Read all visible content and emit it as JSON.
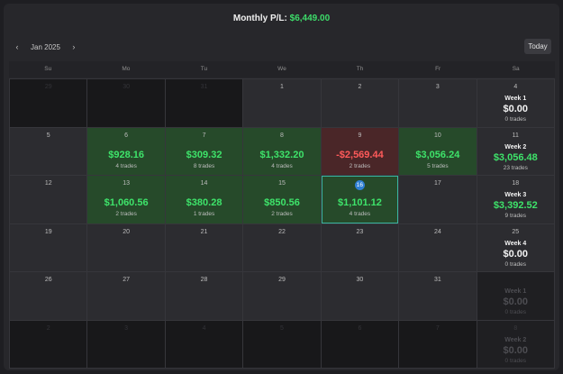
{
  "header": {
    "title_prefix": "Monthly P/L:",
    "title_value": "$6,449.00"
  },
  "nav": {
    "prev_icon": "‹",
    "month_label": "Jan 2025",
    "next_icon": "›",
    "today_label": "Today"
  },
  "weekdays": [
    "Su",
    "Mo",
    "Tu",
    "We",
    "Th",
    "Fr",
    "Sa"
  ],
  "colors": {
    "profit": "#3ee36a",
    "loss": "#ff5a5a",
    "today_marker": "#2f7fd4"
  },
  "weeks": [
    {
      "days": [
        {
          "day": "29",
          "outside": true
        },
        {
          "day": "30",
          "outside": true
        },
        {
          "day": "31",
          "outside": true
        },
        {
          "day": "1"
        },
        {
          "day": "2"
        },
        {
          "day": "3"
        },
        {
          "day": "4",
          "summary": {
            "label": "Week 1",
            "pnl": "$0.00",
            "trades": "0 trades"
          }
        }
      ]
    },
    {
      "days": [
        {
          "day": "5"
        },
        {
          "day": "6",
          "pnl": "$928.16",
          "trades": "4 trades",
          "status": "profit"
        },
        {
          "day": "7",
          "pnl": "$309.32",
          "trades": "8 trades",
          "status": "profit"
        },
        {
          "day": "8",
          "pnl": "$1,332.20",
          "trades": "4 trades",
          "status": "profit"
        },
        {
          "day": "9",
          "pnl": "-$2,569.44",
          "trades": "2 trades",
          "status": "loss"
        },
        {
          "day": "10",
          "pnl": "$3,056.24",
          "trades": "5 trades",
          "status": "profit"
        },
        {
          "day": "11",
          "summary": {
            "label": "Week 2",
            "pnl": "$3,056.48",
            "trades": "23 trades",
            "positive": true
          }
        }
      ]
    },
    {
      "days": [
        {
          "day": "12"
        },
        {
          "day": "13",
          "pnl": "$1,060.56",
          "trades": "2 trades",
          "status": "profit"
        },
        {
          "day": "14",
          "pnl": "$380.28",
          "trades": "1 trades",
          "status": "profit"
        },
        {
          "day": "15",
          "pnl": "$850.56",
          "trades": "2 trades",
          "status": "profit"
        },
        {
          "day": "16",
          "pnl": "$1,101.12",
          "trades": "4 trades",
          "status": "profit",
          "today": true
        },
        {
          "day": "17"
        },
        {
          "day": "18",
          "summary": {
            "label": "Week 3",
            "pnl": "$3,392.52",
            "trades": "9 trades",
            "positive": true
          }
        }
      ]
    },
    {
      "days": [
        {
          "day": "19"
        },
        {
          "day": "20"
        },
        {
          "day": "21"
        },
        {
          "day": "22"
        },
        {
          "day": "23"
        },
        {
          "day": "24"
        },
        {
          "day": "25",
          "summary": {
            "label": "Week 4",
            "pnl": "$0.00",
            "trades": "0 trades"
          }
        }
      ]
    },
    {
      "days": [
        {
          "day": "26"
        },
        {
          "day": "27"
        },
        {
          "day": "28"
        },
        {
          "day": "29"
        },
        {
          "day": "30"
        },
        {
          "day": "31"
        },
        {
          "day": "",
          "summary": {
            "label": "Week 1",
            "pnl": "$0.00",
            "trades": "0 trades"
          },
          "faded": true
        }
      ]
    },
    {
      "days": [
        {
          "day": "2",
          "outside": true
        },
        {
          "day": "3",
          "outside": true
        },
        {
          "day": "4",
          "outside": true
        },
        {
          "day": "5",
          "outside": true
        },
        {
          "day": "6",
          "outside": true
        },
        {
          "day": "7",
          "outside": true
        },
        {
          "day": "8",
          "summary": {
            "label": "Week 2",
            "pnl": "$0.00",
            "trades": "0 trades"
          },
          "faded": true
        }
      ]
    }
  ]
}
